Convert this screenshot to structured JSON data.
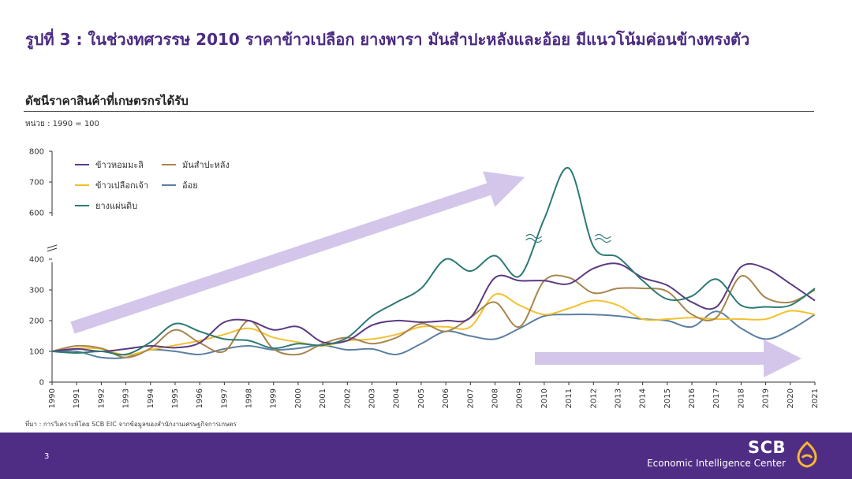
{
  "slide": {
    "title": "รูปที่ 3 : ในช่วงทศวรรษ 2010 ราคาข้าวเปลือก ยางพารา มันสำปะหลังและอ้อย มีแนวโน้มค่อนข้างทรงตัว",
    "subtitle": "ดัชนีราคาสินค้าที่เกษตรกรได้รับ",
    "unit": "หน่วย : 1990 = 100",
    "source": "ที่มา : การวิเคราะห์โดย SCB EIC จากข้อมูลของสำนักงานเศรษฐกิจการเกษตร",
    "page_number": "3"
  },
  "brand": {
    "name": "SCB",
    "subtitle": "Economic Intelligence Center",
    "logo_icon": "scb-shield-logo-icon",
    "logo_color": "#f7b731"
  },
  "chart_data": {
    "type": "line",
    "x": [
      1990,
      1991,
      1992,
      1993,
      1994,
      1995,
      1996,
      1997,
      1998,
      1999,
      2000,
      2001,
      2002,
      2003,
      2004,
      2005,
      2006,
      2007,
      2008,
      2009,
      2010,
      2011,
      2012,
      2013,
      2014,
      2015,
      2016,
      2017,
      2018,
      2019,
      2020,
      2021
    ],
    "y_ticks": [
      0,
      100,
      200,
      300,
      400,
      600,
      700,
      800
    ],
    "ylim": [
      0,
      800
    ],
    "axis_break": [
      400,
      600
    ],
    "legend_placement": "top-left",
    "series": [
      {
        "name": "ข้าวหอมมะลิ",
        "color": "#5b3a82",
        "values": [
          100,
          108,
          100,
          108,
          118,
          112,
          128,
          195,
          200,
          170,
          180,
          130,
          135,
          185,
          200,
          195,
          200,
          210,
          340,
          330,
          330,
          320,
          370,
          385,
          340,
          315,
          260,
          245,
          375,
          370,
          320,
          265
        ]
      },
      {
        "name": "มันสำปะหลัง",
        "color": "#a8854d",
        "values": [
          100,
          118,
          110,
          80,
          110,
          170,
          128,
          100,
          200,
          108,
          90,
          125,
          145,
          125,
          145,
          190,
          165,
          210,
          260,
          180,
          330,
          340,
          290,
          305,
          305,
          295,
          220,
          210,
          345,
          275,
          260,
          300
        ]
      },
      {
        "name": "ข้าวเปลือกเจ้า",
        "color": "#f2c12e",
        "values": [
          100,
          110,
          108,
          88,
          105,
          120,
          135,
          155,
          175,
          145,
          130,
          118,
          135,
          140,
          155,
          180,
          180,
          180,
          285,
          250,
          220,
          240,
          265,
          250,
          205,
          205,
          210,
          205,
          205,
          205,
          232,
          220
        ]
      },
      {
        "name": "อ้อย",
        "color": "#5b7fa3",
        "values": [
          100,
          100,
          80,
          80,
          105,
          100,
          90,
          108,
          118,
          105,
          110,
          120,
          105,
          108,
          90,
          125,
          165,
          150,
          140,
          175,
          215,
          220,
          220,
          215,
          205,
          200,
          180,
          230,
          175,
          140,
          170,
          220
        ]
      },
      {
        "name": "ยางแผ่นดิบ",
        "color": "#2d7a74",
        "values": [
          100,
          95,
          100,
          90,
          130,
          190,
          165,
          140,
          135,
          110,
          125,
          120,
          145,
          215,
          260,
          305,
          400,
          410,
          460,
          345,
          580,
          745,
          490,
          455,
          330,
          270,
          280,
          335,
          250,
          245,
          250,
          305
        ]
      }
    ]
  },
  "chart_axes_y_labels": [
    "0",
    "100",
    "200",
    "300",
    "400",
    "600",
    "700",
    "800"
  ]
}
